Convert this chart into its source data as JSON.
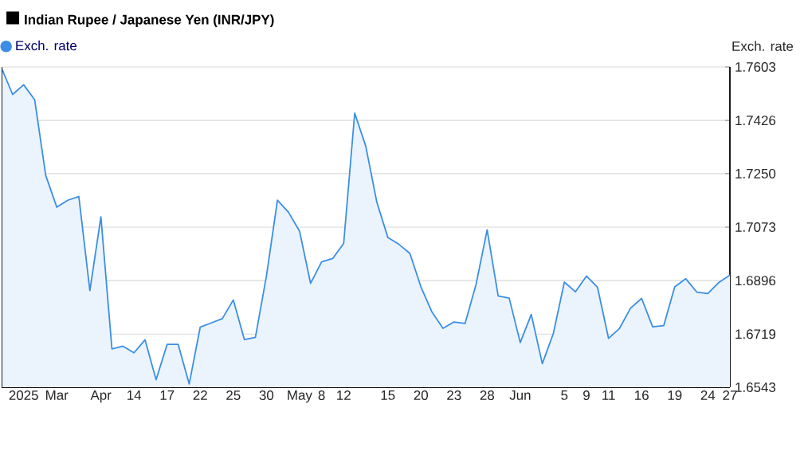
{
  "chart_data": {
    "type": "area",
    "title": "Indian Rupee / Japanese Yen (INR/JPY)",
    "ylabel": "Exch. rate",
    "categories": [
      null,
      null,
      "2025",
      null,
      null,
      "Mar",
      null,
      null,
      null,
      "Apr",
      null,
      null,
      "14",
      null,
      null,
      "17",
      null,
      null,
      "22",
      null,
      null,
      "25",
      null,
      null,
      "30",
      null,
      null,
      "May",
      null,
      "8",
      null,
      "12",
      null,
      null,
      null,
      "15",
      null,
      null,
      "20",
      null,
      null,
      "23",
      null,
      null,
      "28",
      null,
      null,
      "Jun",
      null,
      null,
      null,
      "5",
      null,
      "9",
      null,
      "11",
      null,
      null,
      "16",
      null,
      null,
      "19",
      null,
      null,
      "24",
      null,
      "27"
    ],
    "series": [
      {
        "name": "Exch. rate",
        "color": "#3b8ee5",
        "values": [
          1.7599,
          1.7512,
          1.7544,
          1.7494,
          1.7244,
          1.7139,
          1.7162,
          1.7174,
          1.6863,
          1.7107,
          1.667,
          1.6679,
          1.6657,
          1.67,
          1.6568,
          1.6685,
          1.6685,
          1.6554,
          1.6742,
          1.6756,
          1.677,
          1.6832,
          1.6701,
          1.6708,
          1.6911,
          1.7162,
          1.7122,
          1.706,
          1.6887,
          1.6958,
          1.6969,
          1.7019,
          1.745,
          1.7341,
          1.7156,
          1.7039,
          1.7016,
          1.6986,
          1.6875,
          1.6792,
          1.6738,
          1.6759,
          1.6754,
          1.6884,
          1.7064,
          1.6845,
          1.6838,
          1.6691,
          1.6784,
          1.6621,
          1.6721,
          1.6891,
          1.6859,
          1.6911,
          1.6874,
          1.6705,
          1.6738,
          1.6805,
          1.6837,
          1.6743,
          1.6747,
          1.6875,
          1.6902,
          1.6858,
          1.6853,
          1.689,
          1.6914
        ]
      }
    ],
    "ylim": [
      1.6543,
      1.7603
    ],
    "yticks": [
      1.6543,
      1.6719,
      1.6896,
      1.7073,
      {
        "value": 1.725,
        "label": "1.7250"
      },
      1.7426,
      1.7603
    ],
    "grid": "y",
    "legend": "top left",
    "marker": "none",
    "line_style": "solid"
  }
}
